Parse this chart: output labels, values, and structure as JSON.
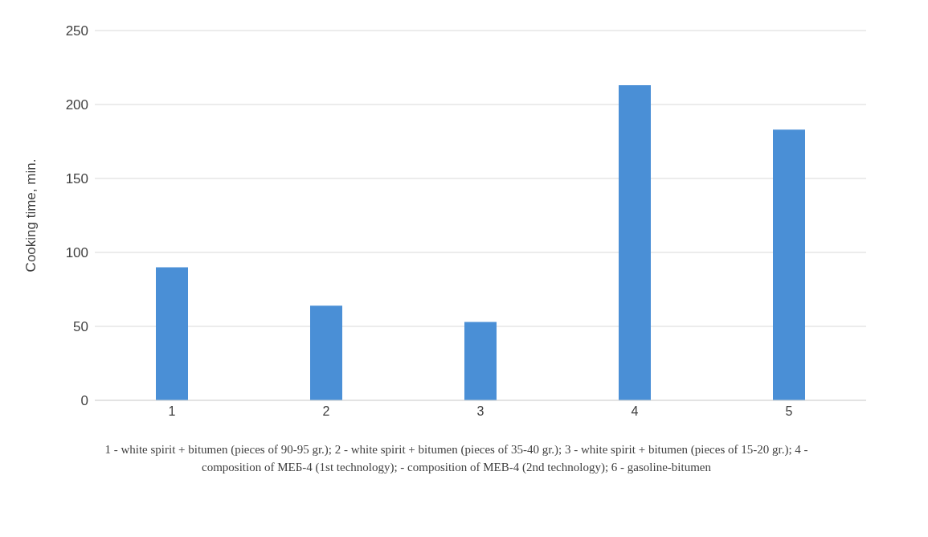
{
  "chart_data": {
    "type": "bar",
    "ylabel": "Cooking time, min.",
    "categories": [
      "1",
      "2",
      "3",
      "4",
      "5"
    ],
    "values": [
      90,
      64,
      53,
      213,
      183
    ],
    "color": "#4a8fd6",
    "ylim": [
      0,
      250
    ],
    "yticks": [
      0,
      50,
      100,
      150,
      200,
      250
    ],
    "grid": "y",
    "annotations": [
      "1 - white spirit + bitumen (pieces of 90-95 gr.); 2 - white spirit + bitumen (pieces of 35-40 gr.); 3 - white spirit + bitumen (pieces of 15-20 gr.); 4 - composition of МЕБ-4 (1st technology); - composition of MEB-4 (2nd technology); 6 - gasoline-bitumen"
    ]
  }
}
